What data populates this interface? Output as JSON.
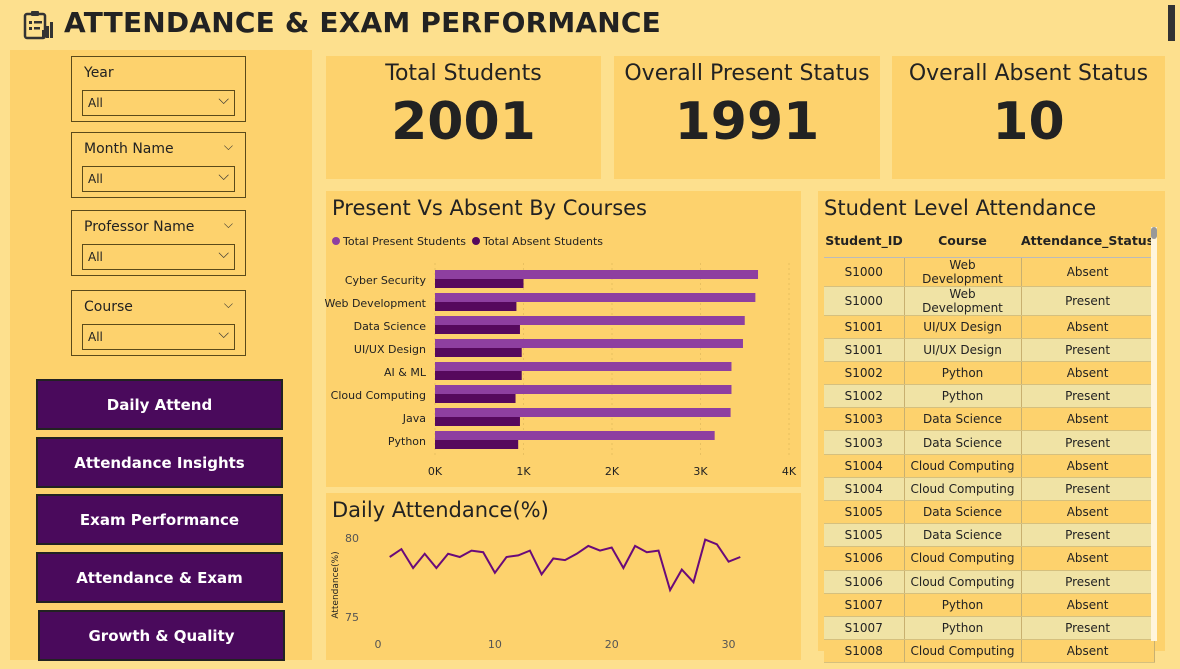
{
  "header": {
    "title": "ATTENDANCE & EXAM PERFORMANCE",
    "logo_icon": "clipboard-chart-icon"
  },
  "filters": [
    {
      "label": "Year",
      "value": "All"
    },
    {
      "label": "Month Name",
      "value": "All"
    },
    {
      "label": "Professor Name",
      "value": "All"
    },
    {
      "label": "Course",
      "value": "All"
    }
  ],
  "nav": [
    "Daily Attend",
    "Attendance Insights",
    "Exam Performance",
    "Attendance & Exam",
    "Growth & Quality"
  ],
  "kpis": [
    {
      "label": "Total Students",
      "value": "2001"
    },
    {
      "label": "Overall Present Status",
      "value": "1991"
    },
    {
      "label": "Overall Absent Status",
      "value": "10"
    }
  ],
  "colors": {
    "present": "#8e3fa0",
    "absent": "#56095d",
    "line": "#6a0a7a",
    "nav_bg": "#4a0a5c",
    "panel": "#fdd26d",
    "page": "#fde08e"
  },
  "chart_data": [
    {
      "type": "bar",
      "title": "Present Vs Absent By Courses",
      "orientation": "horizontal",
      "categories": [
        "Cyber Security",
        "Web Development",
        "Data Science",
        "UI/UX Design",
        "AI & ML",
        "Cloud Computing",
        "Java",
        "Python"
      ],
      "series": [
        {
          "name": "Total Present Students",
          "values": [
            3650,
            3620,
            3500,
            3480,
            3350,
            3350,
            3340,
            3160
          ]
        },
        {
          "name": "Total Absent Students",
          "values": [
            1000,
            920,
            960,
            980,
            980,
            910,
            960,
            940
          ]
        }
      ],
      "xticks": [
        "0K",
        "1K",
        "2K",
        "3K",
        "4K"
      ],
      "xlim": [
        0,
        4000
      ],
      "legend_position": "top-left"
    },
    {
      "type": "line",
      "title": "Daily Attendance(%)",
      "ylabel": "Attendance(%)",
      "x": [
        1,
        2,
        3,
        4,
        5,
        6,
        7,
        8,
        9,
        10,
        11,
        12,
        13,
        14,
        15,
        16,
        17,
        18,
        19,
        20,
        21,
        22,
        23,
        24,
        25,
        26,
        27,
        28,
        29,
        30,
        31
      ],
      "values": [
        78.8,
        79.3,
        78.1,
        79.0,
        78.1,
        79.0,
        78.8,
        79.2,
        79.1,
        77.8,
        78.8,
        78.9,
        79.2,
        77.7,
        78.7,
        78.6,
        79.0,
        79.5,
        79.2,
        79.4,
        78.1,
        79.5,
        79.1,
        79.2,
        76.7,
        78.0,
        77.2,
        79.9,
        79.6,
        78.5,
        78.8
      ],
      "yticks": [
        "80",
        "75"
      ],
      "ylim": [
        75,
        80
      ],
      "xticks": [
        "0",
        "10",
        "20",
        "30"
      ],
      "xlim": [
        0,
        35
      ]
    }
  ],
  "table": {
    "title": "Student Level Attendance",
    "columns": [
      "Student_ID",
      "Course",
      "Attendance_Status"
    ],
    "rows": [
      [
        "S1000",
        "Web Development",
        "Absent"
      ],
      [
        "S1000",
        "Web Development",
        "Present"
      ],
      [
        "S1001",
        "UI/UX Design",
        "Absent"
      ],
      [
        "S1001",
        "UI/UX Design",
        "Present"
      ],
      [
        "S1002",
        "Python",
        "Absent"
      ],
      [
        "S1002",
        "Python",
        "Present"
      ],
      [
        "S1003",
        "Data Science",
        "Absent"
      ],
      [
        "S1003",
        "Data Science",
        "Present"
      ],
      [
        "S1004",
        "Cloud Computing",
        "Absent"
      ],
      [
        "S1004",
        "Cloud Computing",
        "Present"
      ],
      [
        "S1005",
        "Data Science",
        "Absent"
      ],
      [
        "S1005",
        "Data Science",
        "Present"
      ],
      [
        "S1006",
        "Cloud Computing",
        "Absent"
      ],
      [
        "S1006",
        "Cloud Computing",
        "Present"
      ],
      [
        "S1007",
        "Python",
        "Absent"
      ],
      [
        "S1007",
        "Python",
        "Present"
      ],
      [
        "S1008",
        "Cloud Computing",
        "Absent"
      ]
    ]
  }
}
